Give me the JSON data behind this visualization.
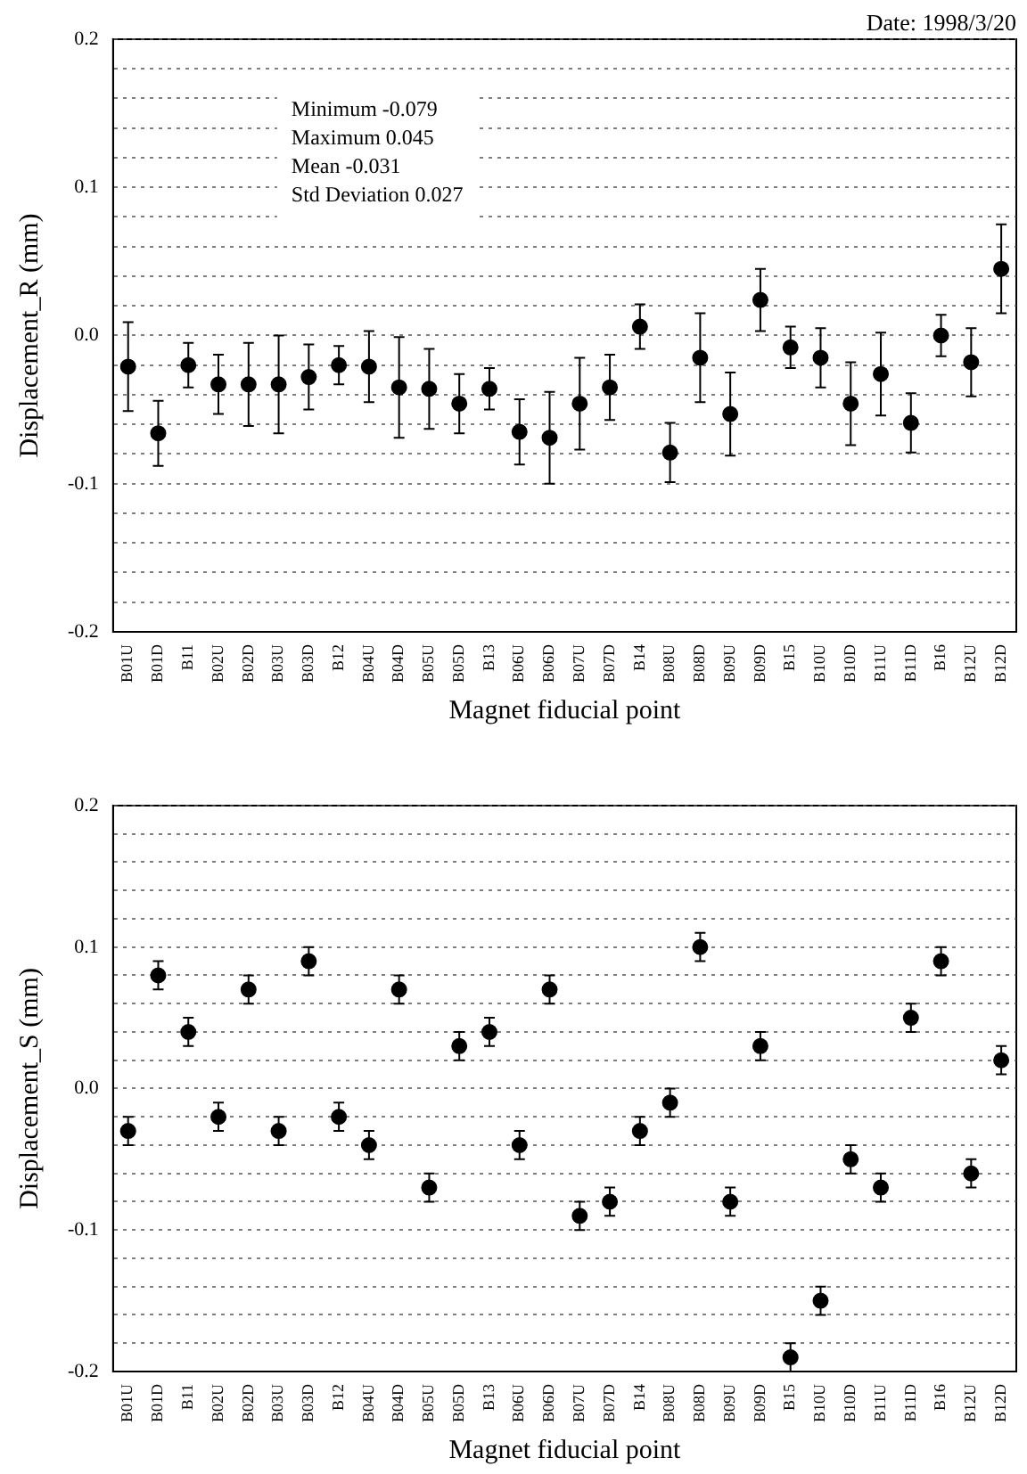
{
  "chart_data": [
    {
      "type": "scatter",
      "ylabel": "Displacement_R (mm)",
      "xlabel": "Magnet fiducial point",
      "annotations": [
        "Date: 1998/3/20",
        "Minimum -0.079",
        "Maximum 0.045",
        "Mean -0.031",
        "Std Deviation 0.027"
      ],
      "categories": [
        "B01U",
        "B01D",
        "B11",
        "B02U",
        "B02D",
        "B03U",
        "B03D",
        "B12",
        "B04U",
        "B04D",
        "B05U",
        "B05D",
        "B13",
        "B06U",
        "B06D",
        "B07U",
        "B07D",
        "B14",
        "B08U",
        "B08D",
        "B09U",
        "B09D",
        "B15",
        "B10U",
        "B10D",
        "B11U",
        "B11D",
        "B16",
        "B12U",
        "B12D"
      ],
      "values": [
        -0.021,
        -0.066,
        -0.02,
        -0.033,
        -0.033,
        -0.033,
        -0.028,
        -0.02,
        -0.021,
        -0.035,
        -0.036,
        -0.046,
        -0.036,
        -0.065,
        -0.069,
        -0.046,
        -0.035,
        0.006,
        -0.079,
        -0.015,
        -0.053,
        0.024,
        -0.008,
        -0.015,
        -0.046,
        -0.026,
        -0.059,
        0.0,
        -0.018,
        0.045
      ],
      "errors": [
        0.03,
        0.022,
        0.015,
        0.02,
        0.028,
        0.033,
        0.022,
        0.013,
        0.024,
        0.034,
        0.027,
        0.02,
        0.014,
        0.022,
        0.031,
        0.031,
        0.022,
        0.015,
        0.02,
        0.03,
        0.028,
        0.021,
        0.014,
        0.02,
        0.028,
        0.028,
        0.02,
        0.014,
        0.023,
        0.03
      ],
      "color": "#000000",
      "marker": "circle",
      "ylim": [
        -0.2,
        0.2
      ],
      "yticks": [
        {
          "value": -0.2,
          "label": "-0.2"
        },
        {
          "value": -0.18,
          "label": null
        },
        {
          "value": -0.16,
          "label": null
        },
        {
          "value": -0.14,
          "label": null
        },
        {
          "value": -0.12,
          "label": null
        },
        {
          "value": -0.1,
          "label": "-0.1"
        },
        {
          "value": -0.08,
          "label": null
        },
        {
          "value": -0.06,
          "label": null
        },
        {
          "value": -0.04,
          "label": null
        },
        {
          "value": -0.02,
          "label": null
        },
        {
          "value": 0,
          "label": "0.0"
        },
        {
          "value": 0.02,
          "label": null
        },
        {
          "value": 0.04,
          "label": null
        },
        {
          "value": 0.06,
          "label": null
        },
        {
          "value": 0.08,
          "label": null
        },
        {
          "value": 0.1,
          "label": "0.1"
        },
        {
          "value": 0.12,
          "label": null
        },
        {
          "value": 0.14,
          "label": null
        },
        {
          "value": 0.16,
          "label": null
        },
        {
          "value": 0.18,
          "label": null
        },
        {
          "value": 0.2,
          "label": "0.2"
        }
      ],
      "grid": "y",
      "legend": false
    },
    {
      "type": "scatter",
      "ylabel": "Displacement_S (mm)",
      "xlabel": "Magnet fiducial point",
      "categories": [
        "B01U",
        "B01D",
        "B11",
        "B02U",
        "B02D",
        "B03U",
        "B03D",
        "B12",
        "B04U",
        "B04D",
        "B05U",
        "B05D",
        "B13",
        "B06U",
        "B06D",
        "B07U",
        "B07D",
        "B14",
        "B08U",
        "B08D",
        "B09U",
        "B09D",
        "B15",
        "B10U",
        "B10D",
        "B11U",
        "B11D",
        "B16",
        "B12U",
        "B12D"
      ],
      "values": [
        -0.03,
        0.08,
        0.04,
        -0.02,
        0.07,
        -0.03,
        0.09,
        -0.02,
        -0.04,
        0.07,
        -0.07,
        0.03,
        0.04,
        -0.04,
        0.07,
        -0.09,
        -0.08,
        -0.03,
        -0.01,
        0.1,
        -0.08,
        0.03,
        -0.19,
        -0.15,
        -0.05,
        -0.07,
        0.05,
        0.09,
        -0.06,
        0.02
      ],
      "errors": [
        0.01,
        0.01,
        0.01,
        0.01,
        0.01,
        0.01,
        0.01,
        0.01,
        0.01,
        0.01,
        0.01,
        0.01,
        0.01,
        0.01,
        0.01,
        0.01,
        0.01,
        0.01,
        0.01,
        0.01,
        0.01,
        0.01,
        0.01,
        0.01,
        0.01,
        0.01,
        0.01,
        0.01,
        0.01,
        0.01
      ],
      "color": "#000000",
      "marker": "circle",
      "ylim": [
        -0.2,
        0.2
      ],
      "yticks": [
        {
          "value": -0.2,
          "label": "-0.2"
        },
        {
          "value": -0.18,
          "label": null
        },
        {
          "value": -0.16,
          "label": null
        },
        {
          "value": -0.14,
          "label": null
        },
        {
          "value": -0.12,
          "label": null
        },
        {
          "value": -0.1,
          "label": "-0.1"
        },
        {
          "value": -0.08,
          "label": null
        },
        {
          "value": -0.06,
          "label": null
        },
        {
          "value": -0.04,
          "label": null
        },
        {
          "value": -0.02,
          "label": null
        },
        {
          "value": 0,
          "label": "0.0"
        },
        {
          "value": 0.02,
          "label": null
        },
        {
          "value": 0.04,
          "label": null
        },
        {
          "value": 0.06,
          "label": null
        },
        {
          "value": 0.08,
          "label": null
        },
        {
          "value": 0.1,
          "label": "0.1"
        },
        {
          "value": 0.12,
          "label": null
        },
        {
          "value": 0.14,
          "label": null
        },
        {
          "value": 0.16,
          "label": null
        },
        {
          "value": 0.18,
          "label": null
        },
        {
          "value": 0.2,
          "label": "0.2"
        }
      ],
      "grid": "y",
      "legend": false
    }
  ]
}
